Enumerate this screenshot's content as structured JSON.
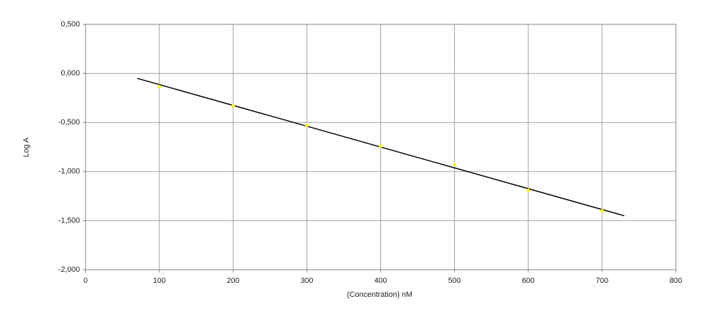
{
  "chart_data": {
    "type": "scatter",
    "xlabel": "(Concentration) nM",
    "ylabel": "Log A",
    "series": [
      {
        "color": "#ffff00",
        "x": [
          100,
          200,
          300,
          400,
          500,
          600,
          700
        ],
        "values": [
          -0.135,
          -0.33,
          -0.53,
          -0.74,
          -0.93,
          -1.19,
          -1.4
        ]
      }
    ],
    "trendline": {
      "color": "#000000",
      "x": [
        70,
        730
      ],
      "values": [
        -0.05,
        -1.45
      ]
    },
    "xlim": [
      0,
      800
    ],
    "xticks": [
      0,
      100,
      200,
      300,
      400,
      500,
      600,
      700,
      800
    ],
    "ylim": [
      -2,
      0.5
    ],
    "yticks": [
      {
        "value": -2,
        "label": "-2,000"
      },
      {
        "value": -1.5,
        "label": "-1,500"
      },
      {
        "value": -1,
        "label": "-1,000"
      },
      {
        "value": -0.5,
        "label": "-0,500"
      },
      {
        "value": 0,
        "label": "0,000"
      },
      {
        "value": 0.5,
        "label": "0,500"
      }
    ],
    "grid": true
  }
}
